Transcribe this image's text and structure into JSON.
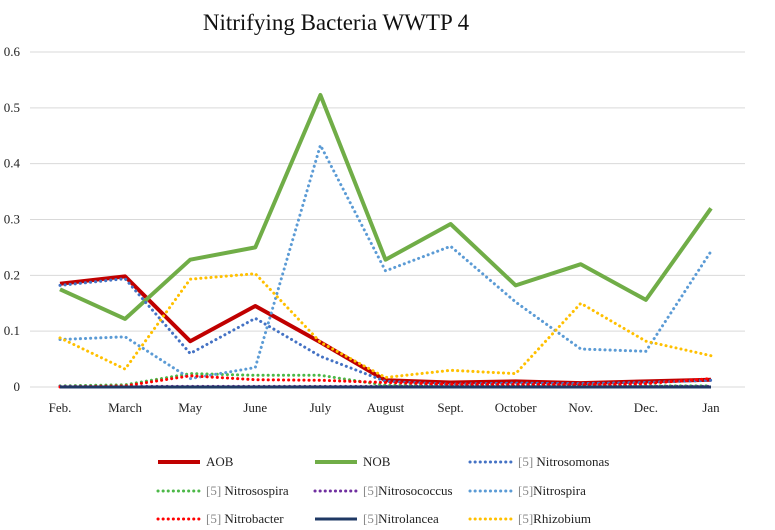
{
  "chart_data": {
    "type": "line",
    "title": "Nitrifying Bacteria WWTP 4",
    "xlabel": "",
    "ylabel": "",
    "categories": [
      "Feb.",
      "March",
      "May",
      "June",
      "July",
      "August",
      "Sept.",
      "October",
      "Nov.",
      "Dec.",
      "Jan"
    ],
    "ylim": [
      0,
      0.6
    ],
    "yticks": [
      "0",
      "0.1",
      "0.2",
      "0.3",
      "0.4",
      "0.5",
      "0.6"
    ],
    "grid": true,
    "legend_position": "bottom",
    "series": [
      {
        "name": "AOB",
        "prefix": "",
        "label": "AOB",
        "color": "#c00000",
        "style": "solid",
        "width": 4,
        "values": [
          0.185,
          0.198,
          0.082,
          0.145,
          0.08,
          0.012,
          0.008,
          0.01,
          0.007,
          0.01,
          0.013
        ]
      },
      {
        "name": "NOB",
        "prefix": "",
        "label": "NOB",
        "color": "#70ad47",
        "style": "solid",
        "width": 4,
        "values": [
          0.175,
          0.122,
          0.228,
          0.25,
          0.523,
          0.228,
          0.292,
          0.182,
          0.22,
          0.156,
          0.32
        ]
      },
      {
        "name": "[5] Nitrosomonas",
        "prefix": "[5]",
        "label": " Nitrosomonas",
        "color": "#4472c4",
        "style": "dotted",
        "width": 3,
        "values": [
          0.182,
          0.194,
          0.06,
          0.123,
          0.055,
          0.01,
          0.005,
          0.007,
          0.006,
          0.008,
          0.012
        ]
      },
      {
        "name": "[5] Nitrosospira",
        "prefix": "[5]",
        "label": " Nitrosospira",
        "color": "#4cb848",
        "style": "dotted",
        "width": 3,
        "values": [
          0.002,
          0.004,
          0.024,
          0.021,
          0.021,
          0.003,
          0.002,
          0.002,
          0.002,
          0.002,
          0.002
        ]
      },
      {
        "name": "[5] Nitrosococcus",
        "prefix": "[5]",
        "label": "Nitrosococcus",
        "color": "#7030a0",
        "style": "dotted",
        "width": 3,
        "values": [
          0.001,
          0.001,
          0.001,
          0.001,
          0.001,
          0.001,
          0.001,
          0.001,
          0.001,
          0.001,
          0.001
        ]
      },
      {
        "name": "[5] Nitrospira",
        "prefix": "[5]",
        "label": "Nitrospira",
        "color": "#5b9bd5",
        "style": "dotted",
        "width": 3,
        "values": [
          0.085,
          0.09,
          0.015,
          0.035,
          0.433,
          0.208,
          0.252,
          0.152,
          0.068,
          0.064,
          0.243
        ]
      },
      {
        "name": "[5] Nitrobacter",
        "prefix": "[5]",
        "label": " Nitrobacter",
        "color": "#ff0000",
        "style": "dotted",
        "width": 3,
        "values": [
          0.0,
          0.002,
          0.02,
          0.013,
          0.012,
          0.008,
          0.005,
          0.005,
          0.004,
          0.006,
          0.015
        ]
      },
      {
        "name": "[5] Nitrolancea",
        "prefix": "[5]",
        "label": "Nitrolancea",
        "color": "#1f3864",
        "style": "solid",
        "width": 3,
        "values": [
          0.0,
          0.0,
          0.0,
          0.0,
          0.0,
          0.0,
          0.0,
          0.0,
          0.0,
          0.0,
          0.0
        ]
      },
      {
        "name": "[5] Rhizobium",
        "prefix": "[5]",
        "label": "Rhizobium",
        "color": "#ffc000",
        "style": "dotted",
        "width": 3,
        "values": [
          0.088,
          0.032,
          0.193,
          0.203,
          0.08,
          0.017,
          0.03,
          0.024,
          0.15,
          0.082,
          0.056
        ]
      }
    ]
  }
}
